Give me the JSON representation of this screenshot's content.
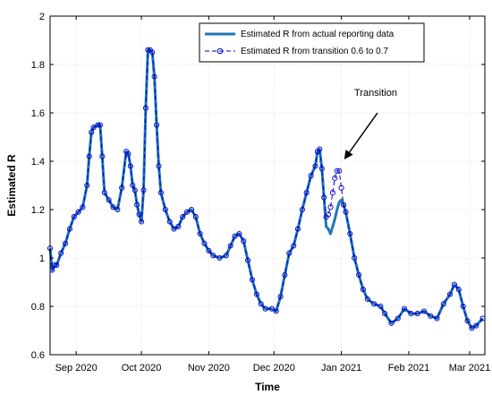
{
  "chart_data": {
    "type": "line",
    "xlabel": "Time",
    "ylabel": "Estimated R",
    "ylim": [
      0.6,
      2.0
    ],
    "yticks": [
      0.6,
      0.8,
      1,
      1.2,
      1.4,
      1.6,
      1.8,
      2
    ],
    "xlim": [
      "2020-08-20",
      "2021-03-08"
    ],
    "xticks": [
      {
        "date": "2020-09-01",
        "label": "Sep 2020"
      },
      {
        "date": "2020-10-01",
        "label": "Oct 2020"
      },
      {
        "date": "2020-11-01",
        "label": "Nov 2020"
      },
      {
        "date": "2020-12-01",
        "label": "Dec 2020"
      },
      {
        "date": "2021-01-01",
        "label": "Jan 2021"
      },
      {
        "date": "2021-02-01",
        "label": "Feb 2021"
      },
      {
        "date": "2021-03-01",
        "label": "Mar 2021"
      }
    ],
    "grid": true,
    "legend_position": "top-right",
    "annotation": {
      "text": "Transition",
      "arrow_to": {
        "x": "2020-12-30",
        "y": 1.4
      }
    },
    "series": [
      {
        "name": "Estimated R from actual reporting data",
        "color": "#1f77b4",
        "style": "solid",
        "marker": "none",
        "points": [
          [
            "2020-08-20",
            1.04
          ],
          [
            "2020-08-21",
            0.95
          ],
          [
            "2020-08-22",
            0.97
          ],
          [
            "2020-08-23",
            0.97
          ],
          [
            "2020-08-25",
            1.02
          ],
          [
            "2020-08-27",
            1.06
          ],
          [
            "2020-08-29",
            1.12
          ],
          [
            "2020-08-31",
            1.17
          ],
          [
            "2020-09-02",
            1.19
          ],
          [
            "2020-09-04",
            1.21
          ],
          [
            "2020-09-06",
            1.3
          ],
          [
            "2020-09-07",
            1.42
          ],
          [
            "2020-09-08",
            1.52
          ],
          [
            "2020-09-09",
            1.54
          ],
          [
            "2020-09-11",
            1.55
          ],
          [
            "2020-09-12",
            1.55
          ],
          [
            "2020-09-13",
            1.42
          ],
          [
            "2020-09-14",
            1.27
          ],
          [
            "2020-09-16",
            1.24
          ],
          [
            "2020-09-18",
            1.21
          ],
          [
            "2020-09-20",
            1.2
          ],
          [
            "2020-09-22",
            1.29
          ],
          [
            "2020-09-24",
            1.44
          ],
          [
            "2020-09-25",
            1.43
          ],
          [
            "2020-09-26",
            1.38
          ],
          [
            "2020-09-27",
            1.3
          ],
          [
            "2020-09-28",
            1.28
          ],
          [
            "2020-09-29",
            1.22
          ],
          [
            "2020-09-30",
            1.18
          ],
          [
            "2020-10-01",
            1.15
          ],
          [
            "2020-10-02",
            1.28
          ],
          [
            "2020-10-03",
            1.62
          ],
          [
            "2020-10-04",
            1.86
          ],
          [
            "2020-10-05",
            1.86
          ],
          [
            "2020-10-06",
            1.85
          ],
          [
            "2020-10-07",
            1.75
          ],
          [
            "2020-10-08",
            1.55
          ],
          [
            "2020-10-09",
            1.38
          ],
          [
            "2020-10-10",
            1.27
          ],
          [
            "2020-10-12",
            1.2
          ],
          [
            "2020-10-14",
            1.15
          ],
          [
            "2020-10-16",
            1.12
          ],
          [
            "2020-10-18",
            1.13
          ],
          [
            "2020-10-20",
            1.17
          ],
          [
            "2020-10-22",
            1.19
          ],
          [
            "2020-10-24",
            1.2
          ],
          [
            "2020-10-26",
            1.17
          ],
          [
            "2020-10-28",
            1.1
          ],
          [
            "2020-10-30",
            1.06
          ],
          [
            "2020-11-01",
            1.03
          ],
          [
            "2020-11-03",
            1.01
          ],
          [
            "2020-11-06",
            1.0
          ],
          [
            "2020-11-09",
            1.01
          ],
          [
            "2020-11-11",
            1.05
          ],
          [
            "2020-11-13",
            1.09
          ],
          [
            "2020-11-15",
            1.1
          ],
          [
            "2020-11-17",
            1.07
          ],
          [
            "2020-11-19",
            0.99
          ],
          [
            "2020-11-21",
            0.91
          ],
          [
            "2020-11-23",
            0.85
          ],
          [
            "2020-11-25",
            0.81
          ],
          [
            "2020-11-27",
            0.79
          ],
          [
            "2020-11-30",
            0.79
          ],
          [
            "2020-12-02",
            0.78
          ],
          [
            "2020-12-04",
            0.84
          ],
          [
            "2020-12-06",
            0.93
          ],
          [
            "2020-12-08",
            1.02
          ],
          [
            "2020-12-10",
            1.05
          ],
          [
            "2020-12-12",
            1.12
          ],
          [
            "2020-12-14",
            1.2
          ],
          [
            "2020-12-16",
            1.27
          ],
          [
            "2020-12-18",
            1.34
          ],
          [
            "2020-12-20",
            1.38
          ],
          [
            "2020-12-21",
            1.44
          ],
          [
            "2020-12-22",
            1.45
          ],
          [
            "2020-12-23",
            1.37
          ],
          [
            "2020-12-24",
            1.25
          ],
          [
            "2020-12-25",
            1.13
          ],
          [
            "2020-12-26",
            1.12
          ],
          [
            "2020-12-27",
            1.1
          ],
          [
            "2020-12-28",
            1.13
          ],
          [
            "2020-12-29",
            1.16
          ],
          [
            "2020-12-30",
            1.2
          ],
          [
            "2020-12-31",
            1.23
          ],
          [
            "2021-01-01",
            1.24
          ],
          [
            "2021-01-02",
            1.22
          ],
          [
            "2021-01-03",
            1.19
          ],
          [
            "2021-01-05",
            1.1
          ],
          [
            "2021-01-07",
            1.0
          ],
          [
            "2021-01-09",
            0.93
          ],
          [
            "2021-01-11",
            0.87
          ],
          [
            "2021-01-13",
            0.83
          ],
          [
            "2021-01-16",
            0.81
          ],
          [
            "2021-01-19",
            0.8
          ],
          [
            "2021-01-21",
            0.77
          ],
          [
            "2021-01-24",
            0.73
          ],
          [
            "2021-01-27",
            0.75
          ],
          [
            "2021-01-30",
            0.79
          ],
          [
            "2021-02-02",
            0.77
          ],
          [
            "2021-02-05",
            0.77
          ],
          [
            "2021-02-08",
            0.78
          ],
          [
            "2021-02-11",
            0.76
          ],
          [
            "2021-02-14",
            0.75
          ],
          [
            "2021-02-17",
            0.81
          ],
          [
            "2021-02-20",
            0.85
          ],
          [
            "2021-02-22",
            0.89
          ],
          [
            "2021-02-24",
            0.87
          ],
          [
            "2021-02-26",
            0.8
          ],
          [
            "2021-02-28",
            0.74
          ],
          [
            "2021-03-02",
            0.71
          ],
          [
            "2021-03-04",
            0.72
          ],
          [
            "2021-03-07",
            0.75
          ]
        ]
      },
      {
        "name": "Estimated R from transition 0.6 to 0.7",
        "color": "#0000cc",
        "style": "dashed",
        "marker": "circle",
        "points": [
          [
            "2020-08-20",
            1.04
          ],
          [
            "2020-08-21",
            0.95
          ],
          [
            "2020-08-22",
            0.97
          ],
          [
            "2020-08-23",
            0.97
          ],
          [
            "2020-08-25",
            1.02
          ],
          [
            "2020-08-27",
            1.06
          ],
          [
            "2020-08-29",
            1.12
          ],
          [
            "2020-08-31",
            1.17
          ],
          [
            "2020-09-02",
            1.19
          ],
          [
            "2020-09-04",
            1.21
          ],
          [
            "2020-09-06",
            1.3
          ],
          [
            "2020-09-07",
            1.42
          ],
          [
            "2020-09-08",
            1.52
          ],
          [
            "2020-09-09",
            1.54
          ],
          [
            "2020-09-11",
            1.55
          ],
          [
            "2020-09-12",
            1.55
          ],
          [
            "2020-09-13",
            1.42
          ],
          [
            "2020-09-14",
            1.27
          ],
          [
            "2020-09-16",
            1.24
          ],
          [
            "2020-09-18",
            1.21
          ],
          [
            "2020-09-20",
            1.2
          ],
          [
            "2020-09-22",
            1.29
          ],
          [
            "2020-09-24",
            1.44
          ],
          [
            "2020-09-25",
            1.43
          ],
          [
            "2020-09-26",
            1.38
          ],
          [
            "2020-09-27",
            1.3
          ],
          [
            "2020-09-28",
            1.28
          ],
          [
            "2020-09-29",
            1.22
          ],
          [
            "2020-09-30",
            1.18
          ],
          [
            "2020-10-01",
            1.15
          ],
          [
            "2020-10-02",
            1.28
          ],
          [
            "2020-10-03",
            1.62
          ],
          [
            "2020-10-04",
            1.86
          ],
          [
            "2020-10-05",
            1.86
          ],
          [
            "2020-10-06",
            1.85
          ],
          [
            "2020-10-07",
            1.75
          ],
          [
            "2020-10-08",
            1.55
          ],
          [
            "2020-10-09",
            1.38
          ],
          [
            "2020-10-10",
            1.27
          ],
          [
            "2020-10-12",
            1.2
          ],
          [
            "2020-10-14",
            1.15
          ],
          [
            "2020-10-16",
            1.12
          ],
          [
            "2020-10-18",
            1.13
          ],
          [
            "2020-10-20",
            1.17
          ],
          [
            "2020-10-22",
            1.19
          ],
          [
            "2020-10-24",
            1.2
          ],
          [
            "2020-10-26",
            1.17
          ],
          [
            "2020-10-28",
            1.1
          ],
          [
            "2020-10-30",
            1.06
          ],
          [
            "2020-11-01",
            1.03
          ],
          [
            "2020-11-03",
            1.01
          ],
          [
            "2020-11-06",
            1.0
          ],
          [
            "2020-11-09",
            1.01
          ],
          [
            "2020-11-11",
            1.05
          ],
          [
            "2020-11-13",
            1.09
          ],
          [
            "2020-11-15",
            1.1
          ],
          [
            "2020-11-17",
            1.07
          ],
          [
            "2020-11-19",
            0.99
          ],
          [
            "2020-11-21",
            0.91
          ],
          [
            "2020-11-23",
            0.85
          ],
          [
            "2020-11-25",
            0.81
          ],
          [
            "2020-11-27",
            0.79
          ],
          [
            "2020-11-30",
            0.79
          ],
          [
            "2020-12-02",
            0.78
          ],
          [
            "2020-12-04",
            0.84
          ],
          [
            "2020-12-06",
            0.93
          ],
          [
            "2020-12-08",
            1.02
          ],
          [
            "2020-12-10",
            1.05
          ],
          [
            "2020-12-12",
            1.12
          ],
          [
            "2020-12-14",
            1.2
          ],
          [
            "2020-12-16",
            1.27
          ],
          [
            "2020-12-18",
            1.34
          ],
          [
            "2020-12-20",
            1.38
          ],
          [
            "2020-12-21",
            1.44
          ],
          [
            "2020-12-22",
            1.45
          ],
          [
            "2020-12-23",
            1.37
          ],
          [
            "2020-12-24",
            1.25
          ],
          [
            "2020-12-25",
            1.17
          ],
          [
            "2020-12-26",
            1.18
          ],
          [
            "2020-12-27",
            1.21
          ],
          [
            "2020-12-28",
            1.27
          ],
          [
            "2020-12-29",
            1.33
          ],
          [
            "2020-12-30",
            1.36
          ],
          [
            "2020-12-31",
            1.36
          ],
          [
            "2021-01-01",
            1.29
          ],
          [
            "2021-01-02",
            1.22
          ],
          [
            "2021-01-03",
            1.19
          ],
          [
            "2021-01-05",
            1.1
          ],
          [
            "2021-01-07",
            1.0
          ],
          [
            "2021-01-09",
            0.93
          ],
          [
            "2021-01-11",
            0.87
          ],
          [
            "2021-01-13",
            0.83
          ],
          [
            "2021-01-16",
            0.81
          ],
          [
            "2021-01-19",
            0.8
          ],
          [
            "2021-01-21",
            0.77
          ],
          [
            "2021-01-24",
            0.73
          ],
          [
            "2021-01-27",
            0.75
          ],
          [
            "2021-01-30",
            0.79
          ],
          [
            "2021-02-02",
            0.77
          ],
          [
            "2021-02-05",
            0.77
          ],
          [
            "2021-02-08",
            0.78
          ],
          [
            "2021-02-11",
            0.76
          ],
          [
            "2021-02-14",
            0.75
          ],
          [
            "2021-02-17",
            0.81
          ],
          [
            "2021-02-20",
            0.85
          ],
          [
            "2021-02-22",
            0.89
          ],
          [
            "2021-02-24",
            0.87
          ],
          [
            "2021-02-26",
            0.8
          ],
          [
            "2021-02-28",
            0.74
          ],
          [
            "2021-03-02",
            0.71
          ],
          [
            "2021-03-04",
            0.72
          ],
          [
            "2021-03-07",
            0.75
          ]
        ]
      }
    ]
  }
}
